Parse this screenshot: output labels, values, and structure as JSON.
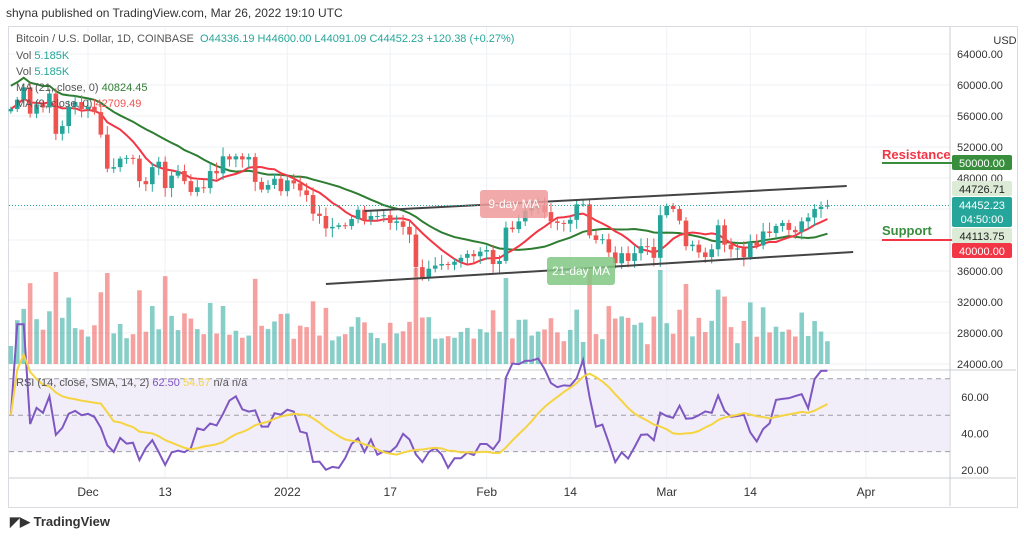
{
  "header": "shyna published on TradingView.com, Mar 26, 2022 19:10 UTC",
  "legend": {
    "symbol": "Bitcoin / U.S. Dollar, 1D, COINBASE",
    "open": "O44336.19",
    "high": "H44600.00",
    "low": "L44091.09",
    "close": "C44452.23",
    "change": "+120.38 (+0.27%)",
    "vol_label": "Vol",
    "vol_value": "5.185K",
    "ma21_label": "MA (21, close, 0)",
    "ma21_value": "40824.45",
    "ma9_label": "MA (9, close, 0)",
    "ma9_value": "42709.49",
    "rsi_label": "RSI (14, close, SMA, 14, 2)",
    "rsi_value": "62.50",
    "rsi_sma": "54.67",
    "na1": "n/a",
    "na2": "n/a"
  },
  "currency": "USD",
  "footer": "TradingView",
  "annotations": {
    "ma9": "9-day MA",
    "ma21": "21-day MA",
    "resistance": "Resistance",
    "support": "Support"
  },
  "price_tags": {
    "resistance": "50000.00",
    "high_tag": "44726.71",
    "last": "44452.23",
    "countdown": "04:50:00",
    "low_tag": "44113.75",
    "support": "40000.00"
  },
  "colors": {
    "up": "#26a69a",
    "down": "#ef5350",
    "ma9": "#f23645",
    "ma21": "#2e7d32",
    "rsi": "#7e57c2",
    "rsi_sma": "#f5d442",
    "resistance_tag": "#388e3c",
    "support_tag": "#f23645"
  },
  "chart_data": {
    "type": "candlestick",
    "start_date": "2021-11-19",
    "closes": [
      56900,
      58100,
      59700,
      56300,
      57500,
      57100,
      58900,
      53700,
      54700,
      57200,
      57800,
      56900,
      57200,
      56500,
      53600,
      49200,
      49400,
      50500,
      50600,
      50500,
      47600,
      47200,
      49400,
      50100,
      46700,
      48300,
      48900,
      47600,
      46200,
      46800,
      46700,
      48900,
      48600,
      50800,
      50400,
      50800,
      50400,
      50700,
      47500,
      46500,
      47100,
      47900,
      46300,
      47700,
      47300,
      46400,
      45800,
      43400,
      43100,
      41500,
      41700,
      41900,
      41800,
      42700,
      43900,
      42600,
      43100,
      43100,
      43200,
      42200,
      42400,
      41700,
      40700,
      36500,
      35100,
      36300,
      36700,
      36900,
      36800,
      37200,
      37700,
      38200,
      37900,
      38500,
      38700,
      36900,
      37300,
      41600,
      41400,
      42400,
      43800,
      44100,
      44400,
      43600,
      42400,
      42200,
      42100,
      42600,
      44600,
      44600,
      40600,
      40000,
      40100,
      38400,
      37000,
      38300,
      37300,
      38300,
      39200,
      39100,
      37700,
      43200,
      44400,
      44000,
      42500,
      39200,
      39400,
      38400,
      37800,
      38800,
      41900,
      39400,
      38800,
      38900,
      37800,
      39700,
      39300,
      41100,
      40900,
      41800,
      42200,
      41300,
      41000,
      42400,
      42900,
      44000,
      44300,
      44452
    ],
    "indicators": [
      "MA 9",
      "MA 21",
      "Volume",
      "RSI 14"
    ],
    "yticks": [
      "64000.00",
      "60000.00",
      "56000.00",
      "52000.00",
      "48000.00",
      "36000.00",
      "32000.00",
      "28000.00",
      "24000.00"
    ],
    "ylim": [
      24000,
      64000
    ],
    "rsi_ticks": [
      "60.00",
      "40.00",
      "20.00"
    ],
    "rsi_band": [
      30,
      70
    ],
    "xticks": [
      {
        "label": "Dec",
        "date": "2021-12-01"
      },
      {
        "label": "13",
        "date": "2021-12-13"
      },
      {
        "label": "2022",
        "date": "2022-01-01"
      },
      {
        "label": "17",
        "date": "2022-01-17"
      },
      {
        "label": "Feb",
        "date": "2022-02-01"
      },
      {
        "label": "14",
        "date": "2022-02-14"
      },
      {
        "label": "Mar",
        "date": "2022-03-01"
      },
      {
        "label": "14",
        "date": "2022-03-14"
      },
      {
        "label": "Apr",
        "date": "2022-04-01"
      }
    ],
    "trendlines": [
      {
        "from": [
          "2022-01-13",
          43740
        ],
        "to": [
          "2022-03-29",
          46970
        ]
      },
      {
        "from": [
          "2022-01-07",
          34320
        ],
        "to": [
          "2022-03-30",
          38450
        ]
      }
    ],
    "grid": true
  }
}
